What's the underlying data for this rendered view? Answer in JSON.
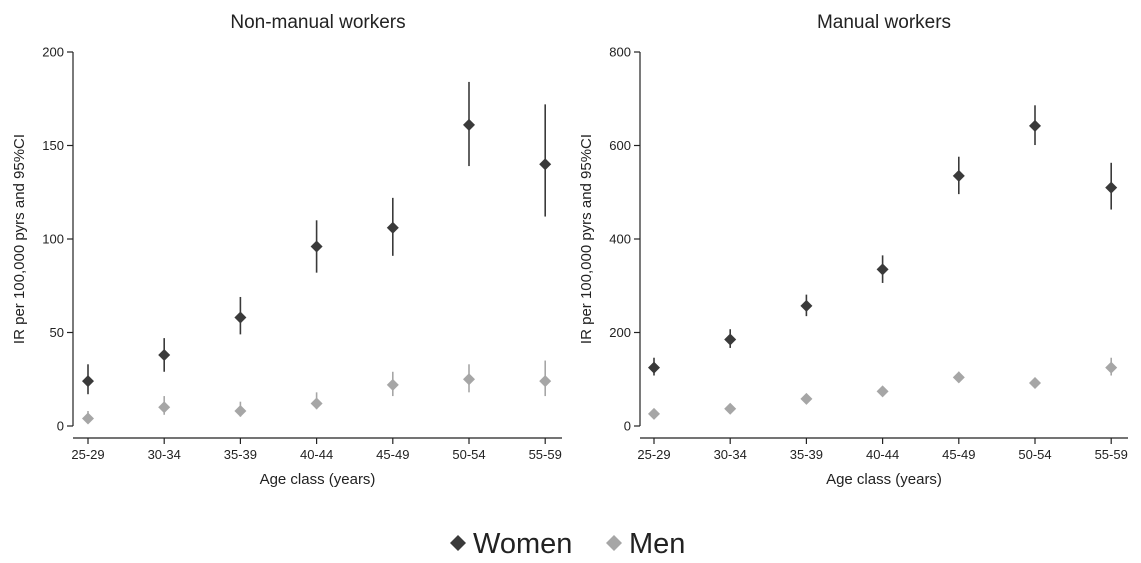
{
  "chart_data": [
    {
      "type": "scatter",
      "title": "Non-manual workers",
      "xlabel": "Age class (years)",
      "ylabel": "IR per 100,000 pyrs and 95%CI",
      "categories": [
        "25-29",
        "30-34",
        "35-39",
        "40-44",
        "45-49",
        "50-54",
        "55-59"
      ],
      "ylim": [
        0,
        200
      ],
      "yticks": [
        0,
        50,
        100,
        150,
        200
      ],
      "grid": false,
      "series": [
        {
          "name": "Women",
          "color": "#3a3a3a",
          "marker": "diamond",
          "values": [
            24,
            38,
            58,
            96,
            106,
            161,
            140
          ],
          "ci_low": [
            17,
            29,
            49,
            82,
            91,
            139,
            112
          ],
          "ci_high": [
            33,
            47,
            69,
            110,
            122,
            184,
            172
          ]
        },
        {
          "name": "Men",
          "color": "#a6a6a6",
          "marker": "diamond",
          "values": [
            4,
            10,
            8,
            12,
            22,
            25,
            24
          ],
          "ci_low": [
            2,
            6,
            5,
            9,
            16,
            18,
            16
          ],
          "ci_high": [
            8,
            16,
            13,
            18,
            29,
            33,
            35
          ]
        }
      ]
    },
    {
      "type": "scatter",
      "title": "Manual workers",
      "xlabel": "Age class (years)",
      "ylabel": "IR per 100,000 pyrs and 95%CI",
      "categories": [
        "25-29",
        "30-34",
        "35-39",
        "40-44",
        "45-49",
        "50-54",
        "55-59"
      ],
      "ylim": [
        0,
        800
      ],
      "yticks": [
        0,
        200,
        400,
        600,
        800
      ],
      "grid": false,
      "series": [
        {
          "name": "Women",
          "color": "#3a3a3a",
          "marker": "diamond",
          "values": [
            125,
            185,
            257,
            335,
            535,
            642,
            510
          ],
          "ci_low": [
            108,
            167,
            235,
            306,
            496,
            601,
            463
          ],
          "ci_high": [
            146,
            207,
            281,
            365,
            576,
            686,
            563
          ]
        },
        {
          "name": "Men",
          "color": "#a6a6a6",
          "marker": "diamond",
          "values": [
            26,
            37,
            58,
            74,
            104,
            92,
            125
          ],
          "ci_low": [
            22,
            32,
            52,
            67,
            93,
            82,
            108
          ],
          "ci_high": [
            31,
            43,
            65,
            82,
            116,
            103,
            146
          ]
        }
      ]
    }
  ],
  "legend": {
    "position": "bottom-center",
    "items": [
      {
        "label": "Women",
        "color": "#3a3a3a"
      },
      {
        "label": "Men",
        "color": "#a6a6a6"
      }
    ]
  }
}
